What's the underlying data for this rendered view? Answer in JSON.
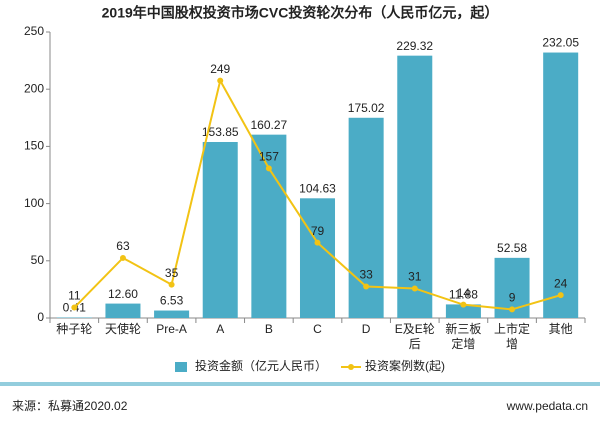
{
  "chart_data": {
    "type": "bar-line",
    "title": "2019年中国股权投资市场CVC投资轮次分布（人民币亿元，起）",
    "categories": [
      "种子轮",
      "天使轮",
      "Pre-A",
      "A",
      "B",
      "C",
      "D",
      "E及E轮后",
      "新三板定增",
      "上市定增",
      "其他"
    ],
    "series": [
      {
        "name": "投资金额（亿元人民币）",
        "type": "bar",
        "color": "#4bacc6",
        "values": [
          0.41,
          12.6,
          6.53,
          153.85,
          160.27,
          104.63,
          175.02,
          229.32,
          11.88,
          52.58,
          232.05
        ],
        "value_labels": [
          "0.41",
          "12.60",
          "6.53",
          "153.85",
          "160.27",
          "104.63",
          "175.02",
          "229.32",
          "11.88",
          "52.58",
          "232.05"
        ]
      },
      {
        "name": "投资案例数(起)",
        "type": "line",
        "axis": "y2",
        "color": "#f2c314",
        "values": [
          11,
          63,
          35,
          249,
          157,
          79,
          33,
          31,
          14,
          9,
          24
        ]
      }
    ],
    "ylim": [
      0,
      250
    ],
    "yticks": [
      0,
      50,
      100,
      150,
      200,
      250
    ],
    "y2lim": [
      0,
      300
    ],
    "grid": false,
    "legend": "bottom",
    "source": "来源：私募通2020.02",
    "website": "www.pedata.cn"
  }
}
